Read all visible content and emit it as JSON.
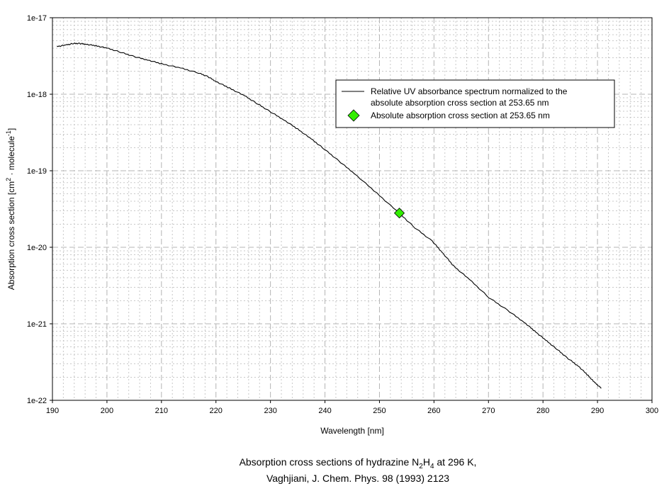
{
  "chart_data": {
    "type": "line",
    "xlabel": "Wavelength [nm]",
    "ylabel": {
      "pre": "Absorption cross section [cm",
      "sup1": "2",
      "mid": " · molecule",
      "sup2": "-1",
      "post": "]"
    },
    "xlim": [
      190,
      300
    ],
    "ylim": [
      1e-22,
      1e-17
    ],
    "yscale": "log",
    "grid": true,
    "x_ticks": [
      "190",
      "200",
      "210",
      "220",
      "230",
      "240",
      "250",
      "260",
      "270",
      "280",
      "290",
      "300"
    ],
    "y_ticks": [
      "1e-22",
      "1e-21",
      "1e-20",
      "1e-19",
      "1e-18",
      "1e-17"
    ],
    "legend": {
      "placement": "top-right",
      "entries": [
        {
          "line1": "Relative UV absorbance spectrum normalized to the",
          "line2": "absolute absorption cross section at 253.65 nm"
        },
        {
          "line1": "Absolute absorption cross section at 253.65 nm"
        }
      ]
    },
    "series": [
      {
        "name": "Relative UV absorbance spectrum normalized to the absolute absorption cross section at 253.65 nm",
        "color": "#000000",
        "x": [
          190.8,
          192.5,
          193.8,
          195.0,
          196.2,
          198.0,
          200.0,
          202.5,
          205.0,
          207.5,
          210.0,
          213.5,
          216.8,
          218.5,
          220.0,
          222.5,
          225.3,
          227.5,
          229.8,
          232.5,
          235.0,
          237.5,
          239.8,
          242.5,
          245.4,
          249.5,
          253.6,
          256.5,
          259.7,
          261.5,
          263.6,
          266.5,
          270.1,
          273.5,
          276.6,
          278.5,
          280.5,
          282.5,
          284.4,
          286.5,
          288.3,
          289.5,
          290.7
        ],
        "y": [
          4.2e-18,
          4.4e-18,
          4.6e-18,
          4.6e-18,
          4.5e-18,
          4.3e-18,
          4e-18,
          3.55e-18,
          3.1e-18,
          2.8e-18,
          2.5e-18,
          2.2e-18,
          1.9e-18,
          1.7e-18,
          1.47e-18,
          1.2e-18,
          9.5e-19,
          7.6e-19,
          6e-19,
          4.6e-19,
          3.5e-19,
          2.6e-19,
          1.94e-19,
          1.35e-19,
          9.2e-20,
          5.1e-20,
          2.8e-20,
          1.8e-20,
          1.2e-20,
          8.6e-21,
          5.7e-21,
          3.8e-21,
          2.2e-21,
          1.5e-21,
          1.04e-21,
          8e-22,
          6.1e-22,
          4.7e-22,
          3.6e-22,
          2.8e-22,
          2.1e-22,
          1.7e-22,
          1.44e-22
        ]
      },
      {
        "name": "Absolute absorption cross section at 253.65 nm",
        "color": "#33ee00",
        "x": [
          253.65
        ],
        "y": [
          2.8e-20
        ]
      }
    ]
  },
  "caption": {
    "line1_pre": "Absorption cross sections of hydrazine N",
    "sub1": "2",
    "mid": "H",
    "sub2": "4",
    "line1_post": " at 296 K,",
    "line2": "Vaghjiani, J. Chem. Phys. 98 (1993) 2123"
  }
}
